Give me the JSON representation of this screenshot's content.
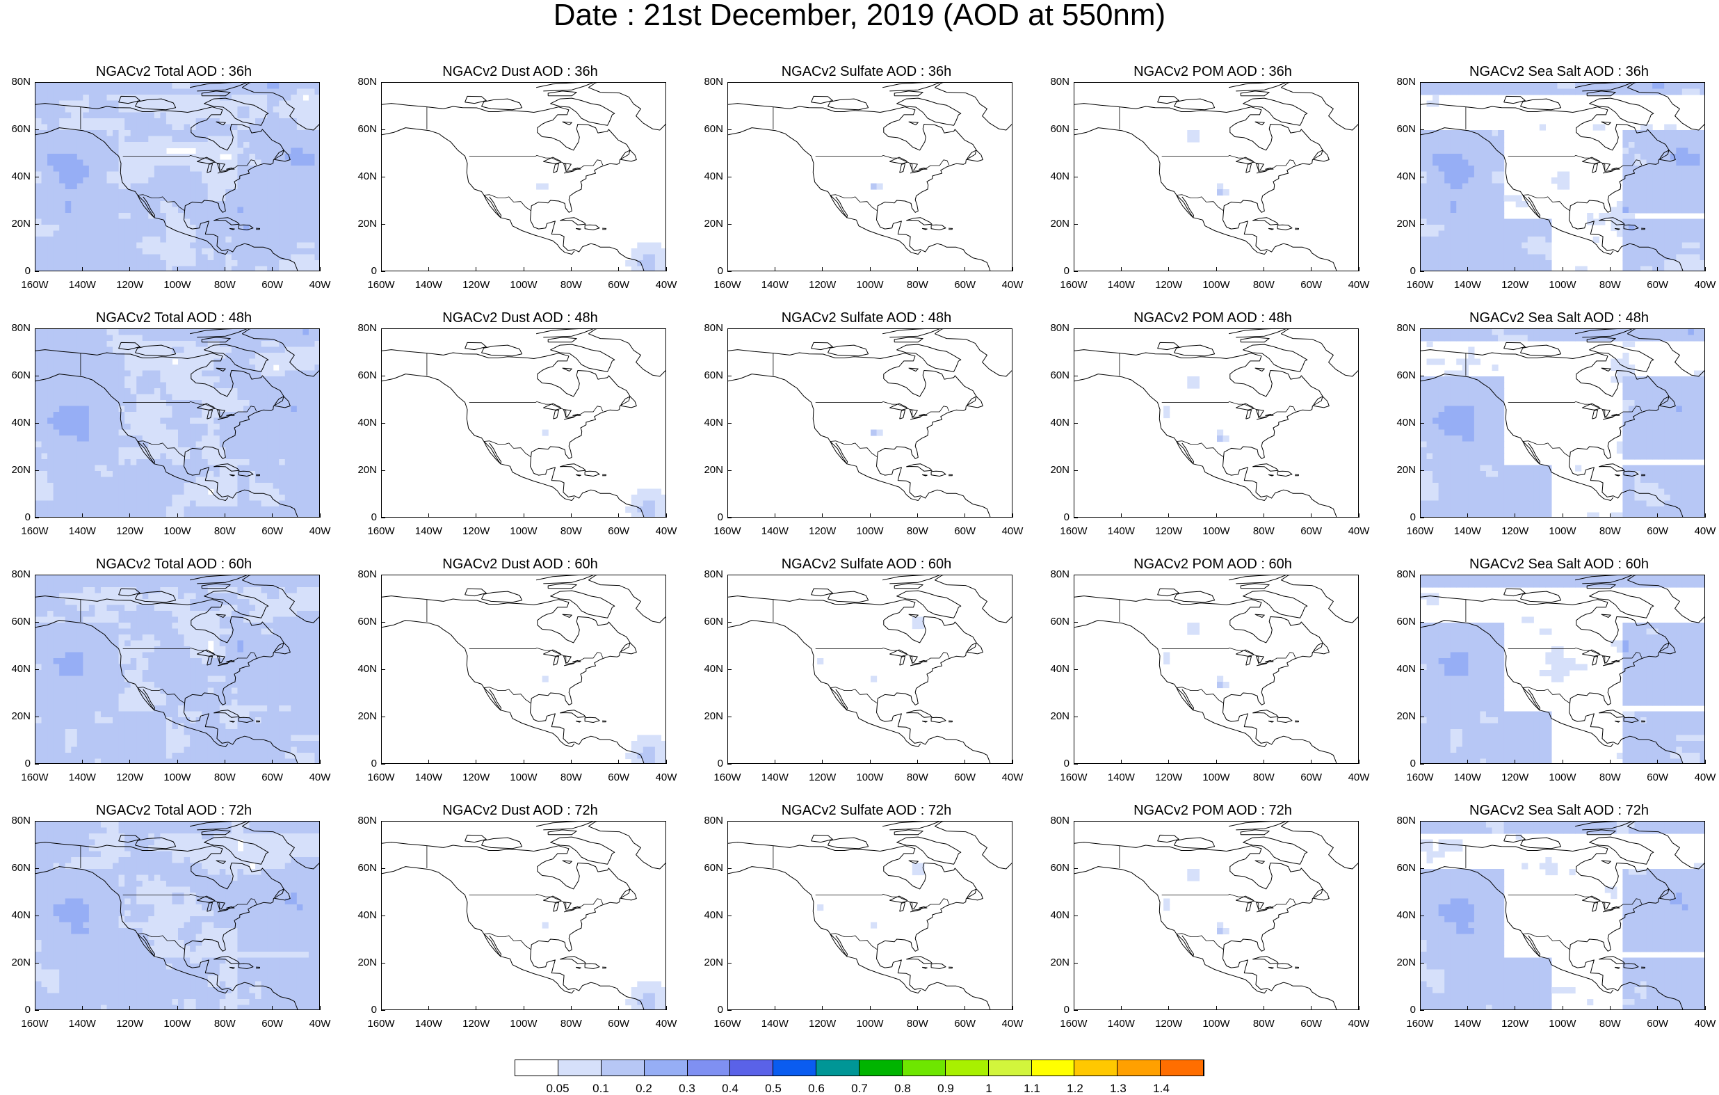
{
  "title": "Date : 21st December, 2019 (AOD at 550nm)",
  "lat_labels": [
    "80N",
    "60N",
    "40N",
    "20N",
    "0"
  ],
  "lon_labels": [
    "160W",
    "140W",
    "120W",
    "100W",
    "80W",
    "60W",
    "40W"
  ],
  "rows": [
    "36h",
    "48h",
    "60h",
    "72h"
  ],
  "columns": [
    "Total",
    "Dust",
    "Sulfate",
    "POM",
    "Sea Salt"
  ],
  "panels": [
    {
      "title": "NGACv2 Total AOD : 36h",
      "species": "total"
    },
    {
      "title": "NGACv2 Dust AOD : 36h",
      "species": "dust"
    },
    {
      "title": "NGACv2 Sulfate AOD : 36h",
      "species": "sulfate"
    },
    {
      "title": "NGACv2 POM AOD : 36h",
      "species": "pom"
    },
    {
      "title": "NGACv2 Sea Salt AOD : 36h",
      "species": "seasalt"
    },
    {
      "title": "NGACv2 Total AOD : 48h",
      "species": "total"
    },
    {
      "title": "NGACv2 Dust AOD : 48h",
      "species": "dust"
    },
    {
      "title": "NGACv2 Sulfate AOD : 48h",
      "species": "sulfate"
    },
    {
      "title": "NGACv2 POM AOD : 48h",
      "species": "pom"
    },
    {
      "title": "NGACv2 Sea Salt AOD : 48h",
      "species": "seasalt"
    },
    {
      "title": "NGACv2 Total AOD : 60h",
      "species": "total"
    },
    {
      "title": "NGACv2 Dust AOD : 60h",
      "species": "dust"
    },
    {
      "title": "NGACv2 Sulfate AOD : 60h",
      "species": "sulfate"
    },
    {
      "title": "NGACv2 POM AOD : 60h",
      "species": "pom"
    },
    {
      "title": "NGACv2 Sea Salt AOD : 60h",
      "species": "seasalt"
    },
    {
      "title": "NGACv2 Total AOD : 72h",
      "species": "total"
    },
    {
      "title": "NGACv2 Dust AOD : 72h",
      "species": "dust"
    },
    {
      "title": "NGACv2 Sulfate AOD : 72h",
      "species": "sulfate"
    },
    {
      "title": "NGACv2 POM AOD : 72h",
      "species": "pom"
    },
    {
      "title": "NGACv2 Sea Salt  AOD : 72h",
      "species": "seasalt"
    }
  ],
  "colorbar": {
    "labels": [
      "0.05",
      "0.1",
      "0.2",
      "0.3",
      "0.4",
      "0.5",
      "0.6",
      "0.7",
      "0.8",
      "0.9",
      "1",
      "1.1",
      "1.2",
      "1.3",
      "1.4"
    ],
    "colors": [
      "#ffffff",
      "#d6e0fa",
      "#b7c7f5",
      "#96aef5",
      "#7f90f2",
      "#5a62e8",
      "#0a5cf0",
      "#009696",
      "#00b400",
      "#6ee600",
      "#a8f000",
      "#d2f53c",
      "#ffff00",
      "#ffc800",
      "#ffa000",
      "#ff6e00",
      "#ff1e00"
    ]
  }
}
